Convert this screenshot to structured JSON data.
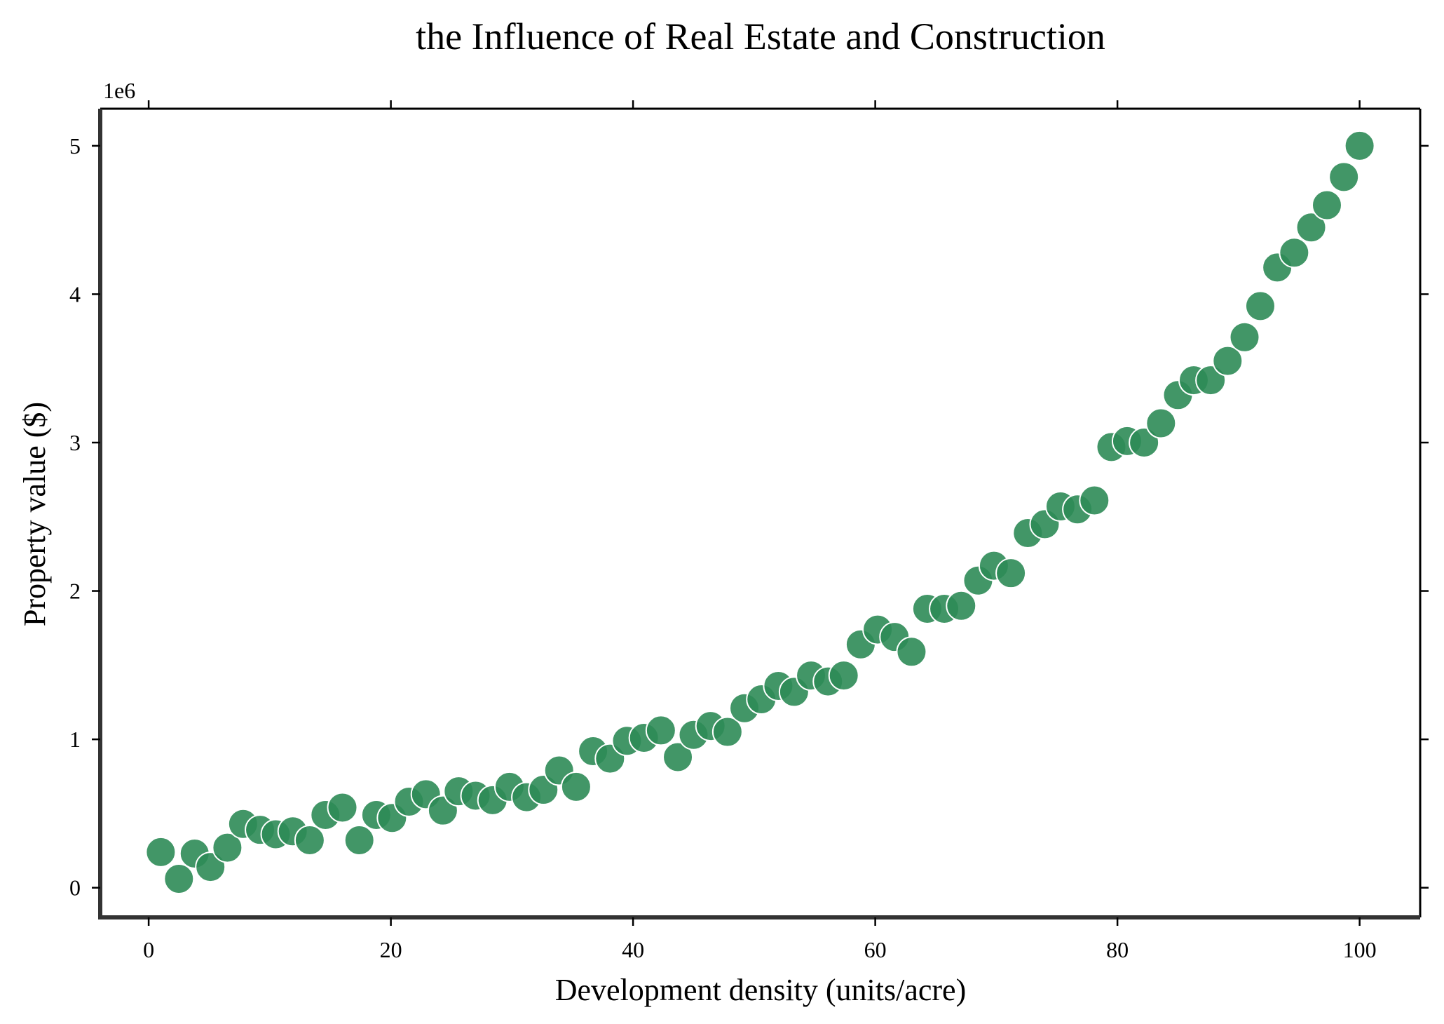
{
  "chart_data": {
    "type": "scatter",
    "title": "the Influence of Real Estate and Construction",
    "xlabel": "Development density (units/acre)",
    "ylabel": "Property value ($)",
    "y_offset_label": "1e6",
    "xlim": [
      -4,
      105
    ],
    "ylim": [
      -0.2,
      5.25
    ],
    "y_unit_multiplier": 1000000,
    "x_ticks": [
      0,
      20,
      40,
      60,
      80,
      100
    ],
    "y_ticks": [
      0,
      1,
      2,
      3,
      4,
      5
    ],
    "x_tick_labels": [
      "0",
      "20",
      "40",
      "60",
      "80",
      "100"
    ],
    "y_tick_labels": [
      "0",
      "1",
      "2",
      "3",
      "4",
      "5"
    ],
    "grid": false,
    "marker_color": "#2e8b57",
    "series": [
      {
        "x": [
          1.0,
          2.5,
          3.8,
          5.1,
          6.5,
          7.8,
          9.2,
          10.5,
          11.9,
          13.3,
          14.6,
          16.0,
          17.4,
          18.8,
          20.1,
          21.5,
          22.9,
          24.3,
          25.6,
          27.0,
          28.4,
          29.8,
          31.2,
          32.6,
          33.9,
          35.3,
          36.7,
          38.1,
          39.5,
          40.9,
          42.3,
          43.7,
          45.0,
          46.4,
          47.8,
          49.2,
          50.6,
          52.0,
          53.3,
          54.7,
          56.1,
          57.4,
          58.8,
          60.2,
          61.6,
          63.0,
          64.3,
          65.7,
          67.1,
          68.5,
          69.8,
          71.2,
          72.6,
          74.0,
          75.3,
          76.7,
          78.1,
          79.5,
          80.8,
          82.2,
          83.6,
          85.0,
          86.3,
          87.7,
          89.1,
          90.5,
          91.8,
          93.2,
          94.6,
          96.0,
          97.3,
          98.7,
          100.0
        ],
        "y": [
          0.24,
          0.06,
          0.23,
          0.14,
          0.27,
          0.43,
          0.39,
          0.36,
          0.38,
          0.32,
          0.49,
          0.54,
          0.32,
          0.49,
          0.47,
          0.58,
          0.63,
          0.52,
          0.65,
          0.62,
          0.59,
          0.68,
          0.61,
          0.66,
          0.79,
          0.68,
          0.92,
          0.87,
          0.99,
          1.01,
          1.06,
          0.88,
          1.03,
          1.09,
          1.05,
          1.21,
          1.27,
          1.36,
          1.32,
          1.43,
          1.39,
          1.43,
          1.64,
          1.74,
          1.69,
          1.59,
          1.88,
          1.88,
          1.9,
          2.07,
          2.17,
          2.12,
          2.39,
          2.45,
          2.57,
          2.55,
          2.61,
          2.97,
          3.01,
          3.0,
          3.13,
          3.32,
          3.42,
          3.42,
          3.55,
          3.71,
          3.92,
          4.18,
          4.28,
          4.45,
          4.6,
          4.79,
          5.0
        ]
      }
    ]
  }
}
